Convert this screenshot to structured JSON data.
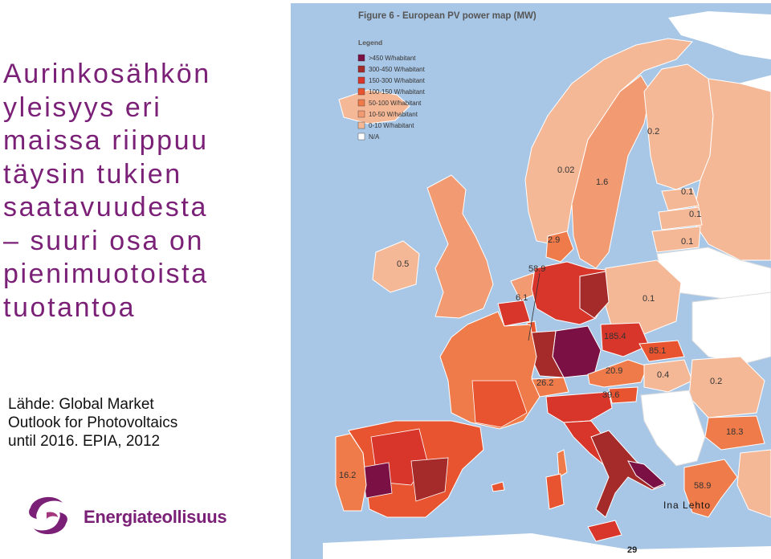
{
  "slide": {
    "title_lines": [
      "Aurinkosähkön",
      "yleisyys eri",
      "maissa riippuu",
      "täysin tukien",
      "saatavuudesta",
      "– suuri osa on",
      "pienimuotoista",
      "tuotantoa"
    ],
    "source_lines": [
      "Lähde: Global Market",
      "Outlook for Photovoltaics",
      "until 2016. EPIA, 2012"
    ],
    "logo_text": "Energiateollisuus",
    "author": "Ina Lehto",
    "page_number": "29"
  },
  "map": {
    "figure_title": "Figure 6 - European PV power map (MW)",
    "legend_title": "Legend",
    "legend": [
      {
        "label": ">450 W/habitant",
        "color": "#7a1043"
      },
      {
        "label": "300-450 W/habitant",
        "color": "#a52a2a"
      },
      {
        "label": "150-300 W/habitant",
        "color": "#d8362b"
      },
      {
        "label": "100-150 W/habitant",
        "color": "#e8542f"
      },
      {
        "label": "50-100 W/habitant",
        "color": "#ef7b4a"
      },
      {
        "label": "10-50 W/habitant",
        "color": "#f29a72"
      },
      {
        "label": "0-10 W/habitant",
        "color": "#f5b896"
      },
      {
        "label": "N/A",
        "color": "#ffffff"
      }
    ],
    "colors": {
      "sea": "#a8c6e5",
      "border": "#ffffff",
      "land_na": "#ffffff"
    },
    "labels": [
      {
        "text": "0.2"
      },
      {
        "text": "0.02"
      },
      {
        "text": "1.6"
      },
      {
        "text": "0.1"
      },
      {
        "text": "0.1"
      },
      {
        "text": "2.9"
      },
      {
        "text": "0.1"
      },
      {
        "text": "0.5"
      },
      {
        "text": "58.9"
      },
      {
        "text": "6.1"
      },
      {
        "text": "0.1"
      },
      {
        "text": "185.4"
      },
      {
        "text": "85.1"
      },
      {
        "text": "20.9"
      },
      {
        "text": "0.4"
      },
      {
        "text": "0.2"
      },
      {
        "text": "26.2"
      },
      {
        "text": "39.6"
      },
      {
        "text": "18.3"
      },
      {
        "text": "16.2"
      },
      {
        "text": "58.9"
      }
    ]
  }
}
